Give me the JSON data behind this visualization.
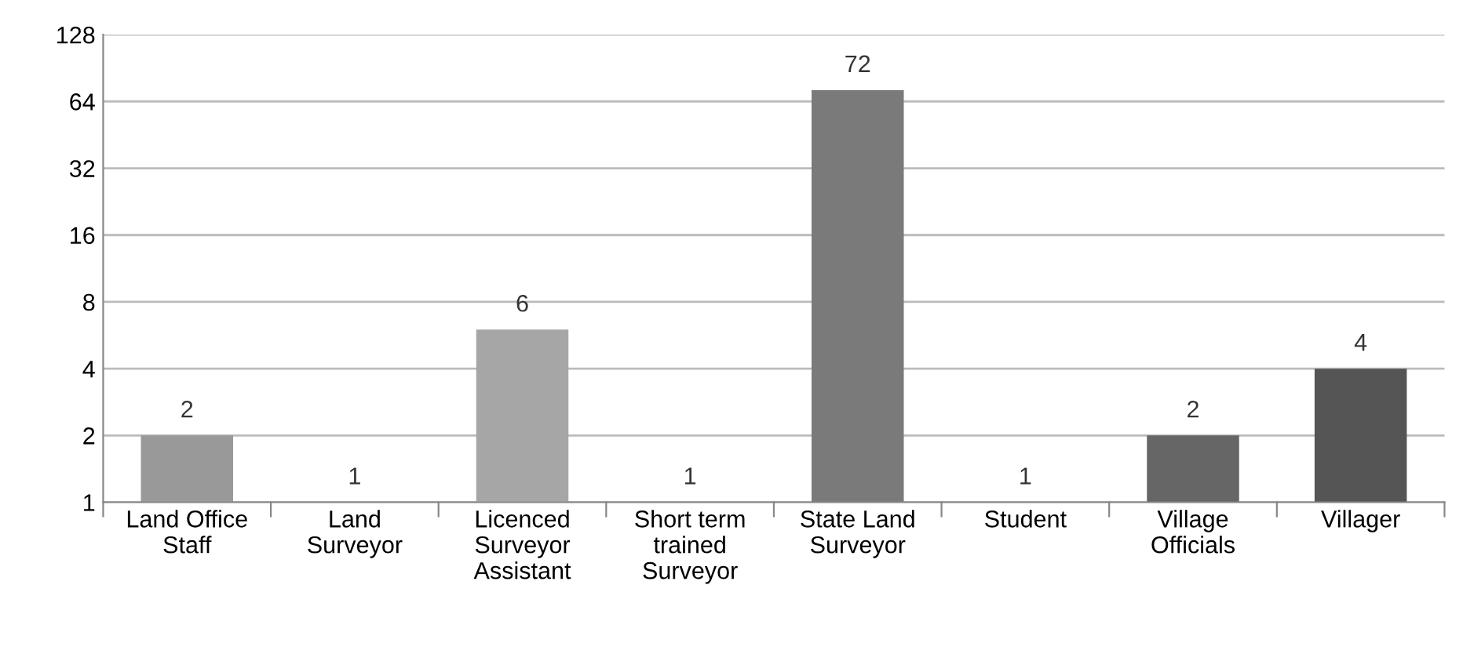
{
  "chart_data": {
    "type": "bar",
    "categories": [
      "Land Office\nStaff",
      "Land\nSurveyor",
      "Licenced\nSurveyor\nAssistant",
      "Short term\ntrained\nSurveyor",
      "State Land\nSurveyor",
      "Student",
      "Village\nOfficials",
      "Villager"
    ],
    "values": [
      2,
      1,
      6,
      1,
      72,
      1,
      2,
      4
    ],
    "colors": [
      "#999999",
      "#999999",
      "#a6a6a6",
      "#a6a6a6",
      "#7a7a7a",
      "#7a7a7a",
      "#666666",
      "#555555"
    ],
    "log": "y",
    "ylim": [
      1,
      128
    ],
    "yticks": [
      1,
      2,
      4,
      8,
      16,
      32,
      64,
      128
    ],
    "grid": "y",
    "data_labels": true
  }
}
